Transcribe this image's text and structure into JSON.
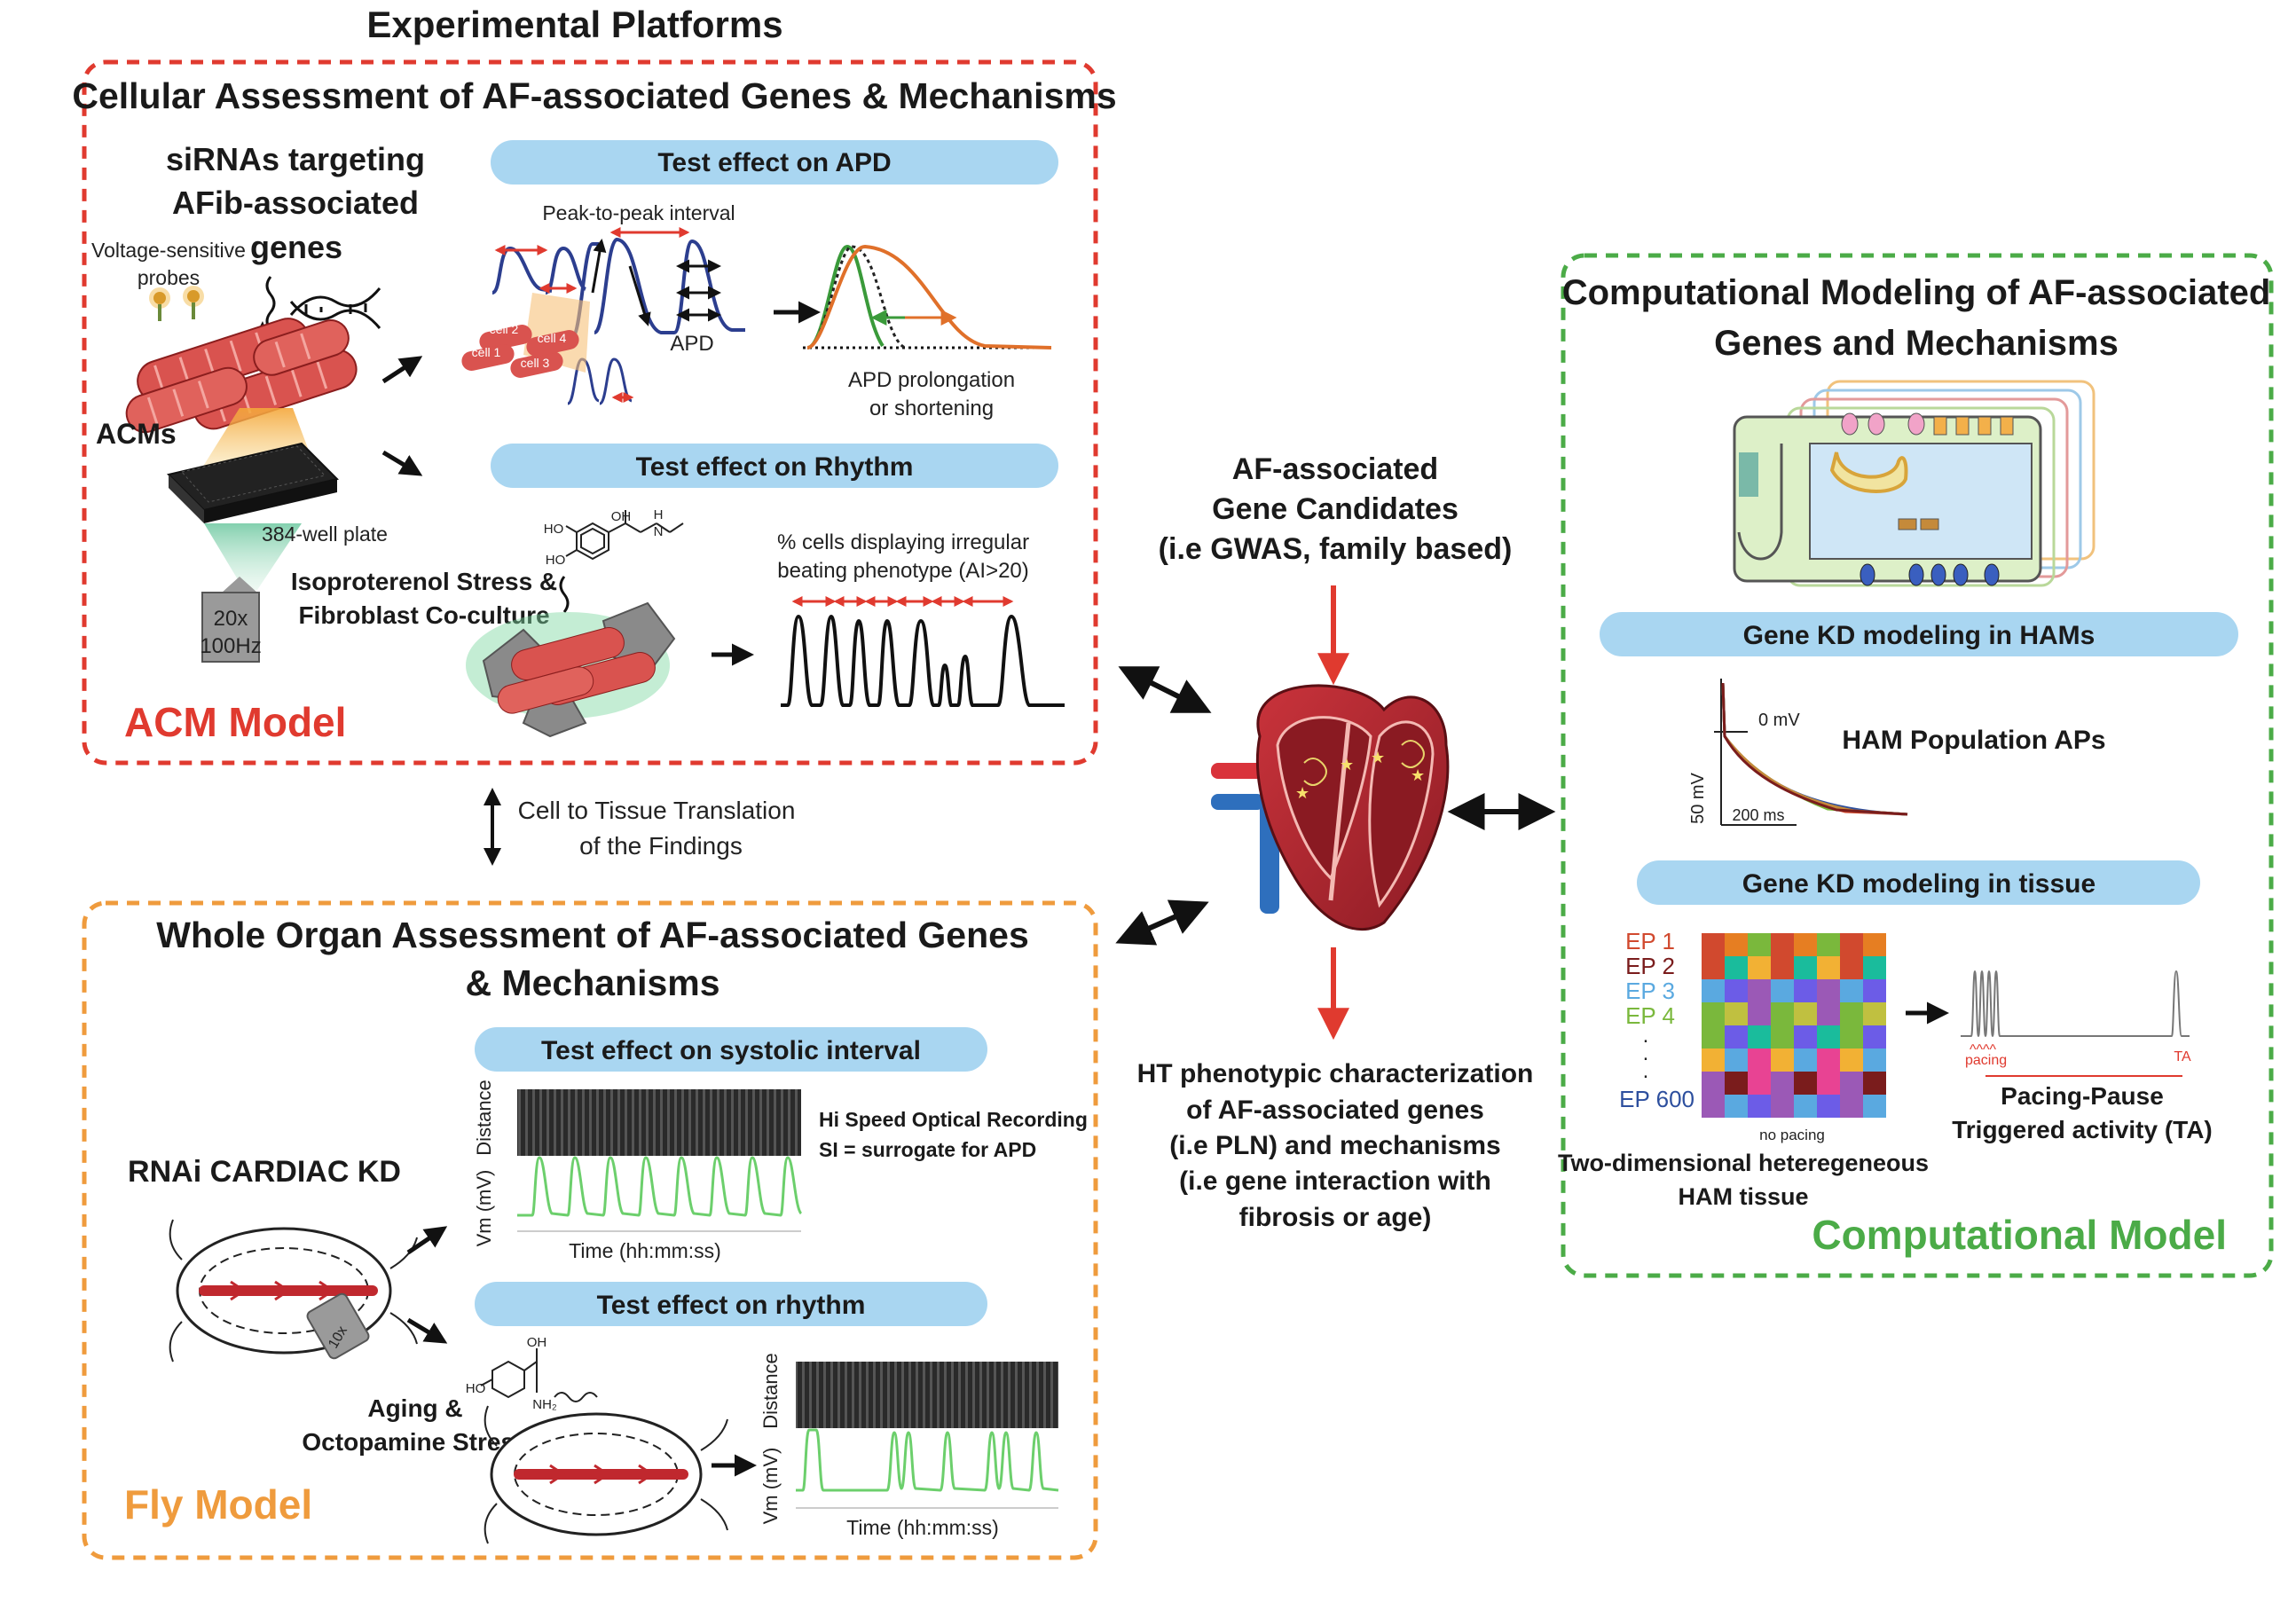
{
  "title": "Experimental Platforms",
  "acm": {
    "heading": "Cellular Assessment of AF-associated Genes & Mechanisms",
    "sirna": [
      "siRNAs targeting",
      "AFib-associated",
      "genes"
    ],
    "probes": [
      "Voltage-sensitive",
      "probes"
    ],
    "acms": "ACMs",
    "plate": "384-well plate",
    "camera": [
      "20x",
      "100Hz"
    ],
    "pill_apd": "Test effect on APD",
    "peak": "Peak-to-peak interval",
    "cells": [
      "cell 1",
      "cell 2",
      "cell 3",
      "cell 4"
    ],
    "apd": "APD",
    "apd_change": [
      "APD prolongation",
      "or shortening"
    ],
    "pill_rhythm": "Test effect on Rhythm",
    "chem": [
      "HO",
      "HO",
      "OH",
      "H",
      "N"
    ],
    "stress": [
      "Isoproterenol Stress &",
      "Fibroblast Co-culture"
    ],
    "irregular": [
      "% cells displaying irregular",
      "beating phenotype (AI>20)"
    ],
    "label": "ACM Model"
  },
  "translation": [
    "Cell to Tissue Translation",
    "of the Findings"
  ],
  "fly": {
    "heading": [
      "Whole Organ Assessment of AF-associated Genes",
      "& Mechanisms"
    ],
    "pill_si": "Test effect on systolic interval",
    "rnai": "RNAi CARDIAC KD",
    "lens": "10x",
    "hispeed": [
      "Hi Speed Optical Recording",
      "SI = surrogate for APD"
    ],
    "distance": "Distance",
    "vm": "Vm (mV)",
    "time": "Time (hh:mm:ss)",
    "pill_rhythm": "Test effect on rhythm",
    "chem": [
      "OH",
      "HO",
      "NH₂"
    ],
    "aging": [
      "Aging &",
      "Octopamine Stress"
    ],
    "label": "Fly Model"
  },
  "center": {
    "candidates": [
      "AF-associated",
      "Gene Candidates",
      "(i.e GWAS, family based)"
    ],
    "ht": [
      "HT phenotypic characterization",
      "of AF-associated genes",
      "(i.e PLN) and mechanisms",
      "(i.e gene interaction with",
      "fibrosis or age)"
    ]
  },
  "comp": {
    "heading": [
      "Computational Modeling of AF-associated",
      "Genes and Mechanisms"
    ],
    "pill_ham": "Gene KD modeling in HAMs",
    "zero_mv": "0 mV",
    "scale_mv": "50 mV",
    "scale_ms": "200 ms",
    "ham_pop": "HAM Population APs",
    "pill_tissue": "Gene KD modeling in tissue",
    "eps": [
      "EP 1",
      "EP 2",
      "EP 3",
      "EP 4",
      ".",
      ".",
      ".",
      "EP 600"
    ],
    "no_pacing": "no pacing",
    "tissue": [
      "Two-dimensional heteregeneous",
      "HAM tissue"
    ],
    "pacing": "pacing",
    "ta": "TA",
    "pacing_pause": [
      "Pacing-Pause",
      "Triggered activity (TA)"
    ],
    "label": "Computational Model"
  },
  "colors": {
    "acm_red": "#e03a2f",
    "fly_orange": "#ef9b3d",
    "comp_green": "#4bab47",
    "pill_blue": "#a9d6f1",
    "trace_blue": "#2c3e8f",
    "trace_red": "#e03a2f",
    "trace_green": "#3a9a3a",
    "trace_orange": "#e0702a",
    "ep1": "#d1492e",
    "ep2": "#7a1c1c",
    "ep3": "#5aa9e0",
    "ep4": "#7ab83c",
    "ep600": "#2d4f9e"
  },
  "icons": [
    "heart-icon",
    "fly-icon",
    "cardiomyocyte-icon",
    "well-plate-icon",
    "camera-icon",
    "dna-icon",
    "cell-model-icon"
  ]
}
